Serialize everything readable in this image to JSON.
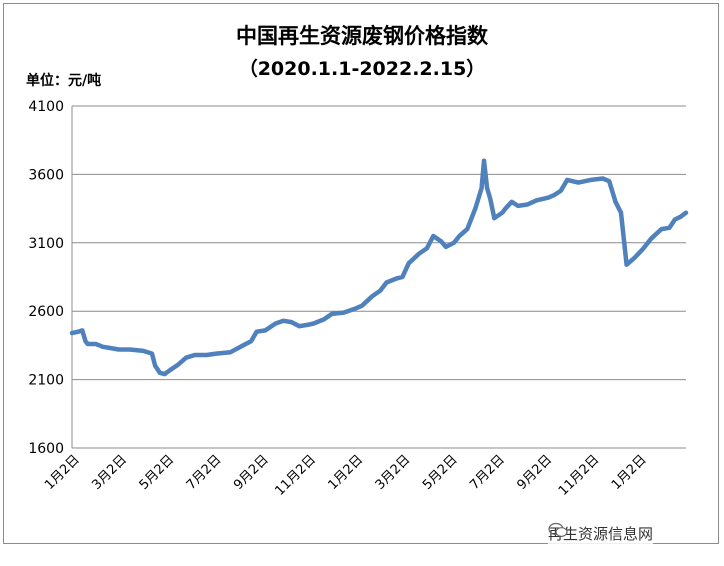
{
  "chart_data": {
    "type": "line",
    "title": "中国再生资源废钢价格指数",
    "subtitle": "（2020.1.1-2022.2.15）",
    "unit_label": "单位：元/吨",
    "xlabel": "",
    "ylabel": "",
    "ylim": [
      1600,
      4100
    ],
    "yticks": [
      "4100",
      "3600",
      "3100",
      "2600",
      "2100",
      "1600"
    ],
    "xticks": [
      "1月2日",
      "3月2日",
      "5月2日",
      "7月2日",
      "9月2日",
      "11月2日",
      "1月2日",
      "3月2日",
      "5月2日",
      "7月2日",
      "9月2日",
      "11月2日",
      "1月2日"
    ],
    "xlim": [
      "2020-01-02",
      "2022-02-15"
    ],
    "grid": true,
    "line_color": "#4f81bd",
    "series": [
      {
        "points": [
          [
            "2020-01-02",
            2440
          ],
          [
            "2020-01-10",
            2450
          ],
          [
            "2020-01-15",
            2460
          ],
          [
            "2020-01-19",
            2380
          ],
          [
            "2020-01-22",
            2360
          ],
          [
            "2020-02-01",
            2360
          ],
          [
            "2020-02-10",
            2340
          ],
          [
            "2020-02-20",
            2330
          ],
          [
            "2020-03-01",
            2320
          ],
          [
            "2020-03-15",
            2320
          ],
          [
            "2020-04-01",
            2310
          ],
          [
            "2020-04-12",
            2290
          ],
          [
            "2020-04-16",
            2200
          ],
          [
            "2020-04-22",
            2150
          ],
          [
            "2020-04-28",
            2140
          ],
          [
            "2020-05-05",
            2170
          ],
          [
            "2020-05-15",
            2210
          ],
          [
            "2020-05-25",
            2260
          ],
          [
            "2020-06-05",
            2280
          ],
          [
            "2020-06-20",
            2280
          ],
          [
            "2020-07-02",
            2290
          ],
          [
            "2020-07-20",
            2300
          ],
          [
            "2020-08-05",
            2350
          ],
          [
            "2020-08-15",
            2380
          ],
          [
            "2020-08-22",
            2450
          ],
          [
            "2020-09-02",
            2460
          ],
          [
            "2020-09-15",
            2510
          ],
          [
            "2020-09-25",
            2530
          ],
          [
            "2020-10-05",
            2520
          ],
          [
            "2020-10-15",
            2490
          ],
          [
            "2020-10-25",
            2500
          ],
          [
            "2020-11-02",
            2510
          ],
          [
            "2020-11-15",
            2540
          ],
          [
            "2020-11-25",
            2580
          ],
          [
            "2020-12-10",
            2590
          ],
          [
            "2020-12-25",
            2620
          ],
          [
            "2021-01-02",
            2640
          ],
          [
            "2021-01-15",
            2710
          ],
          [
            "2021-01-25",
            2750
          ],
          [
            "2021-02-02",
            2810
          ],
          [
            "2021-02-15",
            2840
          ],
          [
            "2021-02-22",
            2850
          ],
          [
            "2021-03-02",
            2950
          ],
          [
            "2021-03-15",
            3020
          ],
          [
            "2021-03-25",
            3060
          ],
          [
            "2021-04-02",
            3150
          ],
          [
            "2021-04-12",
            3110
          ],
          [
            "2021-04-18",
            3070
          ],
          [
            "2021-04-28",
            3100
          ],
          [
            "2021-05-05",
            3150
          ],
          [
            "2021-05-15",
            3200
          ],
          [
            "2021-05-25",
            3350
          ],
          [
            "2021-06-02",
            3500
          ],
          [
            "2021-06-05",
            3700
          ],
          [
            "2021-06-09",
            3500
          ],
          [
            "2021-06-13",
            3420
          ],
          [
            "2021-06-18",
            3280
          ],
          [
            "2021-06-28",
            3320
          ],
          [
            "2021-07-02",
            3350
          ],
          [
            "2021-07-10",
            3400
          ],
          [
            "2021-07-18",
            3370
          ],
          [
            "2021-07-30",
            3380
          ],
          [
            "2021-08-10",
            3410
          ],
          [
            "2021-08-25",
            3430
          ],
          [
            "2021-09-02",
            3450
          ],
          [
            "2021-09-10",
            3480
          ],
          [
            "2021-09-18",
            3560
          ],
          [
            "2021-10-02",
            3540
          ],
          [
            "2021-10-18",
            3560
          ],
          [
            "2021-11-02",
            3570
          ],
          [
            "2021-11-10",
            3550
          ],
          [
            "2021-11-18",
            3400
          ],
          [
            "2021-11-25",
            3320
          ],
          [
            "2021-12-02",
            2940
          ],
          [
            "2021-12-12",
            2990
          ],
          [
            "2021-12-22",
            3050
          ],
          [
            "2022-01-02",
            3130
          ],
          [
            "2022-01-15",
            3200
          ],
          [
            "2022-01-25",
            3210
          ],
          [
            "2022-02-01",
            3270
          ],
          [
            "2022-02-08",
            3290
          ],
          [
            "2022-02-15",
            3320
          ]
        ]
      }
    ]
  },
  "watermark": {
    "icon": "wechat-icon",
    "text": "再生资源信息网"
  }
}
